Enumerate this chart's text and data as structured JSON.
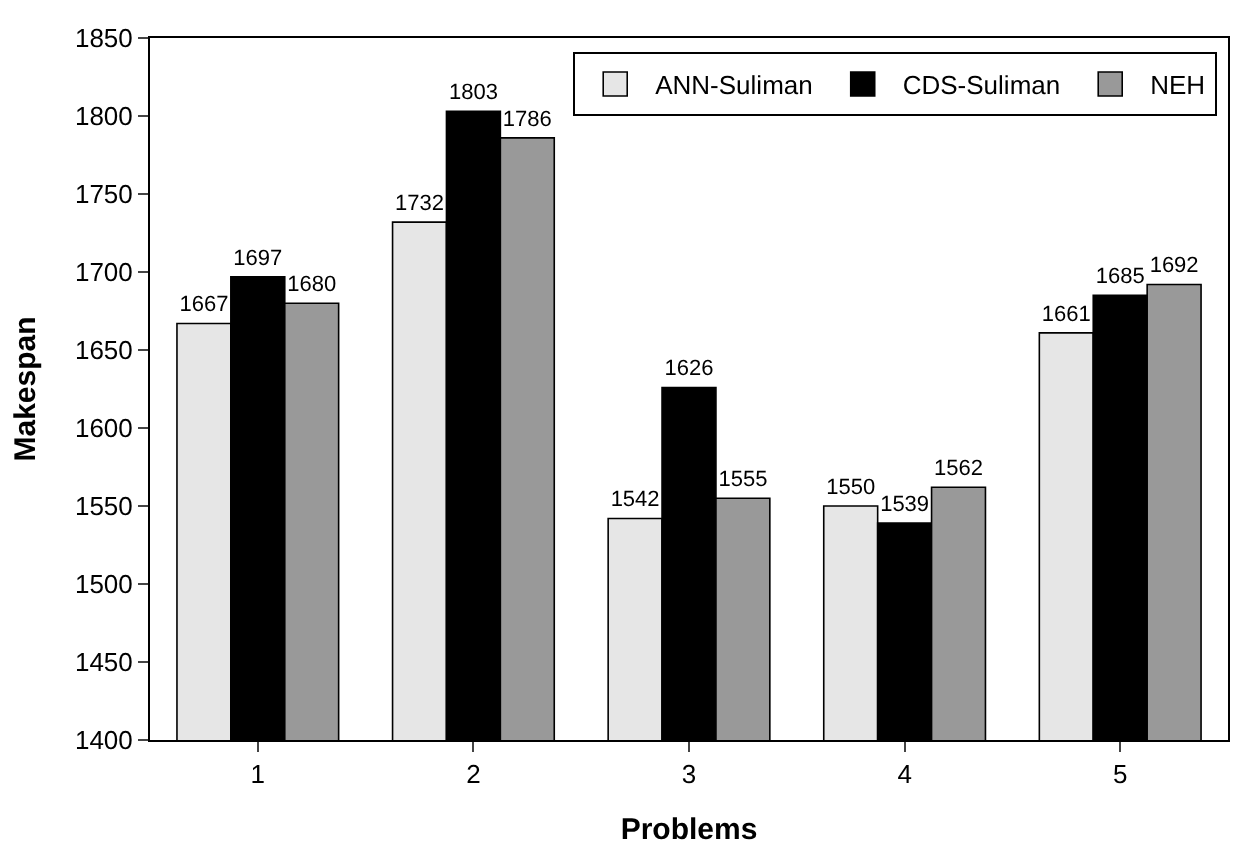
{
  "chart_data": {
    "type": "bar",
    "xlabel": "Problems",
    "ylabel": "Makespan",
    "categories": [
      "1",
      "2",
      "3",
      "4",
      "5"
    ],
    "series": [
      {
        "name": "ANN-Suliman",
        "color": "#e6e6e6",
        "values": [
          1667,
          1732,
          1542,
          1550,
          1661
        ]
      },
      {
        "name": "CDS-Suliman",
        "color": "#000000",
        "values": [
          1697,
          1803,
          1626,
          1539,
          1685
        ]
      },
      {
        "name": "NEH",
        "color": "#999999",
        "values": [
          1680,
          1786,
          1555,
          1562,
          1692
        ]
      }
    ],
    "ylim": [
      1400,
      1850
    ],
    "yticks": [
      1400,
      1450,
      1500,
      1550,
      1600,
      1650,
      1700,
      1750,
      1800,
      1850
    ],
    "data_labels": true,
    "legend": "top right"
  }
}
